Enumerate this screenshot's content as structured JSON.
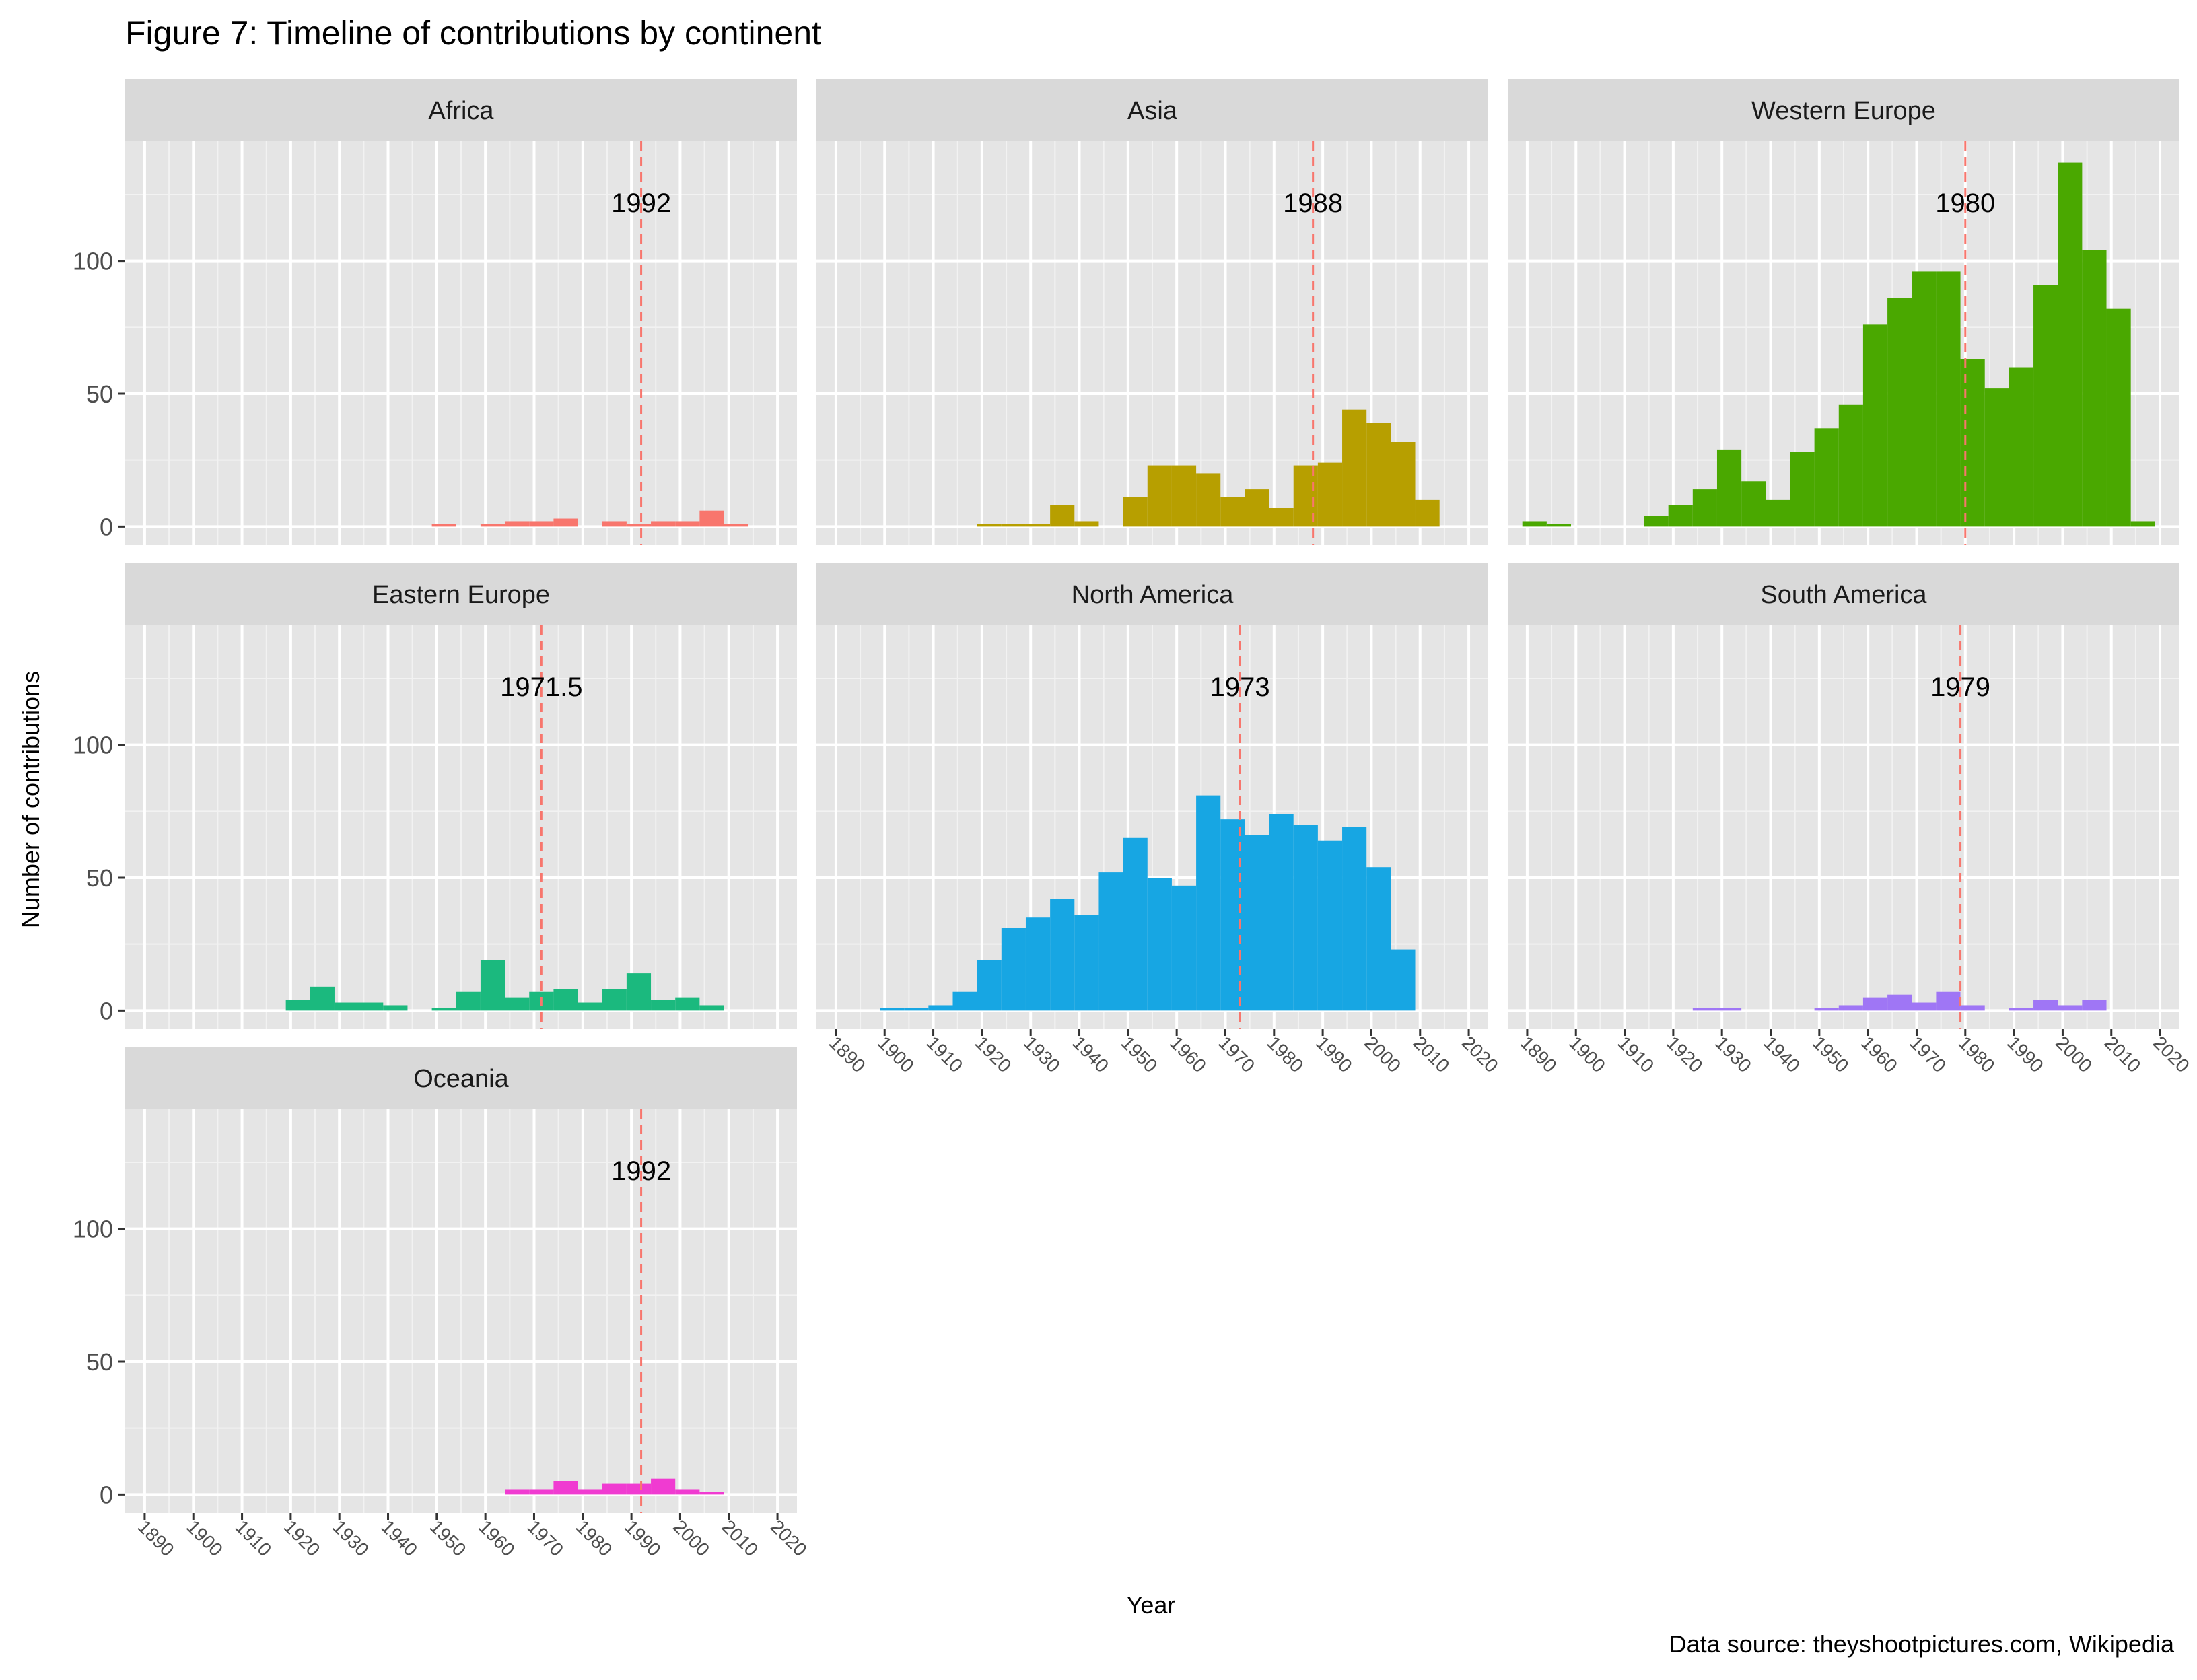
{
  "chart_data": {
    "type": "bar",
    "title": "Figure 7: Timeline of contributions by continent",
    "xlabel": "Year",
    "ylabel": "Number of contributions",
    "caption": "Data source: theyshootpictures.com, Wikipedia",
    "xlim": [
      1886,
      2024
    ],
    "ylim": [
      -7,
      145
    ],
    "x_ticks": [
      1890,
      1900,
      1910,
      1920,
      1930,
      1940,
      1950,
      1960,
      1970,
      1980,
      1990,
      2000,
      2010,
      2020
    ],
    "x_tick_labels": [
      "1890",
      "1900",
      "1910",
      "1920",
      "1930",
      "1940",
      "1950",
      "1960",
      "1970",
      "1980",
      "1990",
      "2000",
      "2010",
      "2020"
    ],
    "y_ticks": [
      0,
      50,
      100
    ],
    "y_tick_labels": [
      "0",
      "50",
      "100"
    ],
    "bin_width": 5,
    "grid": true,
    "median_line_color": "#F8766D",
    "panels": [
      {
        "name": "Africa",
        "color": "#F8766D",
        "median_label": "1992",
        "median": 1992,
        "bins": [
          [
            1949,
            1
          ],
          [
            1959,
            1
          ],
          [
            1964,
            2
          ],
          [
            1969,
            2
          ],
          [
            1974,
            3
          ],
          [
            1984,
            2
          ],
          [
            1989,
            1
          ],
          [
            1994,
            2
          ],
          [
            1999,
            2
          ],
          [
            2004,
            6
          ],
          [
            2009,
            1
          ]
        ]
      },
      {
        "name": "Asia",
        "color": "#B79F00",
        "median_label": "1988",
        "median": 1988,
        "bins": [
          [
            1919,
            1
          ],
          [
            1924,
            1
          ],
          [
            1929,
            1
          ],
          [
            1934,
            8
          ],
          [
            1939,
            2
          ],
          [
            1949,
            11
          ],
          [
            1954,
            23
          ],
          [
            1959,
            23
          ],
          [
            1964,
            20
          ],
          [
            1969,
            11
          ],
          [
            1974,
            14
          ],
          [
            1979,
            7
          ],
          [
            1984,
            23
          ],
          [
            1989,
            24
          ],
          [
            1994,
            44
          ],
          [
            1999,
            39
          ],
          [
            2004,
            32
          ],
          [
            2009,
            10
          ]
        ]
      },
      {
        "name": "Western Europe",
        "color": "#4AA800",
        "median_label": "1980",
        "median": 1980,
        "bins": [
          [
            1889,
            2
          ],
          [
            1894,
            1
          ],
          [
            1914,
            4
          ],
          [
            1919,
            8
          ],
          [
            1924,
            14
          ],
          [
            1929,
            29
          ],
          [
            1934,
            17
          ],
          [
            1939,
            10
          ],
          [
            1944,
            28
          ],
          [
            1949,
            37
          ],
          [
            1954,
            46
          ],
          [
            1959,
            76
          ],
          [
            1964,
            86
          ],
          [
            1969,
            96
          ],
          [
            1974,
            96
          ],
          [
            1979,
            63
          ],
          [
            1984,
            52
          ],
          [
            1989,
            60
          ],
          [
            1994,
            91
          ],
          [
            1999,
            137
          ],
          [
            2004,
            104
          ],
          [
            2009,
            82
          ],
          [
            2014,
            2
          ]
        ]
      },
      {
        "name": "Eastern Europe",
        "color": "#1BB97E",
        "median_label": "1971.5",
        "median": 1971.5,
        "bins": [
          [
            1919,
            4
          ],
          [
            1924,
            9
          ],
          [
            1929,
            3
          ],
          [
            1934,
            3
          ],
          [
            1939,
            2
          ],
          [
            1949,
            1
          ],
          [
            1954,
            7
          ],
          [
            1959,
            19
          ],
          [
            1964,
            5
          ],
          [
            1969,
            7
          ],
          [
            1974,
            8
          ],
          [
            1979,
            3
          ],
          [
            1984,
            8
          ],
          [
            1989,
            14
          ],
          [
            1994,
            4
          ],
          [
            1999,
            5
          ],
          [
            2004,
            2
          ]
        ]
      },
      {
        "name": "North America",
        "color": "#17A6E3",
        "median_label": "1973",
        "median": 1973,
        "bins": [
          [
            1899,
            1
          ],
          [
            1904,
            1
          ],
          [
            1909,
            2
          ],
          [
            1914,
            7
          ],
          [
            1919,
            19
          ],
          [
            1924,
            31
          ],
          [
            1929,
            35
          ],
          [
            1934,
            42
          ],
          [
            1939,
            36
          ],
          [
            1944,
            52
          ],
          [
            1949,
            65
          ],
          [
            1954,
            50
          ],
          [
            1959,
            47
          ],
          [
            1964,
            81
          ],
          [
            1969,
            72
          ],
          [
            1974,
            66
          ],
          [
            1979,
            74
          ],
          [
            1984,
            70
          ],
          [
            1989,
            64
          ],
          [
            1994,
            69
          ],
          [
            1999,
            54
          ],
          [
            2004,
            23
          ]
        ]
      },
      {
        "name": "South America",
        "color": "#9F76F5",
        "median_label": "1979",
        "median": 1979,
        "bins": [
          [
            1924,
            1
          ],
          [
            1929,
            1
          ],
          [
            1949,
            1
          ],
          [
            1954,
            2
          ],
          [
            1959,
            5
          ],
          [
            1964,
            6
          ],
          [
            1969,
            3
          ],
          [
            1974,
            7
          ],
          [
            1979,
            2
          ],
          [
            1989,
            1
          ],
          [
            1994,
            4
          ],
          [
            1999,
            2
          ],
          [
            2004,
            4
          ]
        ]
      },
      {
        "name": "Oceania",
        "color": "#F03BD1",
        "median_label": "1992",
        "median": 1992,
        "bins": [
          [
            1964,
            2
          ],
          [
            1969,
            2
          ],
          [
            1974,
            5
          ],
          [
            1979,
            2
          ],
          [
            1984,
            4
          ],
          [
            1989,
            4
          ],
          [
            1994,
            6
          ],
          [
            1999,
            2
          ],
          [
            2004,
            1
          ]
        ]
      }
    ]
  }
}
